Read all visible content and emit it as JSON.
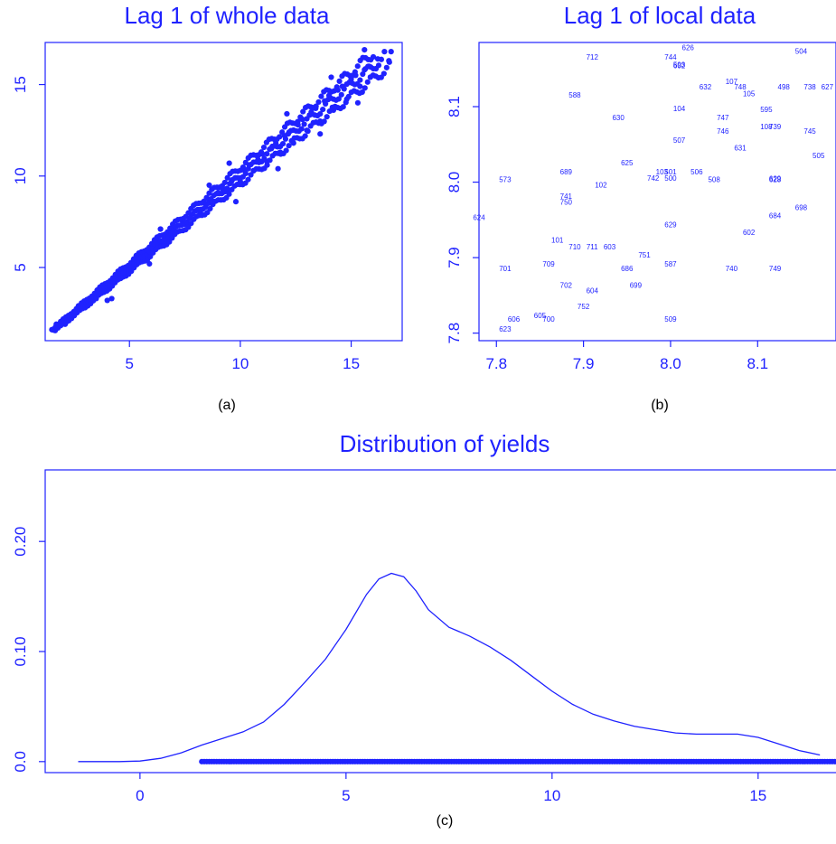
{
  "colors": {
    "series": "#1f22ff",
    "caption": "#000000"
  },
  "chart_data": [
    {
      "type": "scatter",
      "title": "Lag 1 of whole data",
      "caption": "(a)",
      "xlabel": "",
      "ylabel": "",
      "xlim": [
        1.2,
        17.3
      ],
      "ylim": [
        1.0,
        17.3
      ],
      "xticks": [
        5,
        10,
        15
      ],
      "yticks": [
        5,
        10,
        15
      ],
      "xtick_labels": [
        "5",
        "10",
        "15"
      ],
      "ytick_labels": [
        "5",
        "10",
        "15"
      ],
      "grid": false,
      "points": [
        [
          1.5,
          1.6
        ],
        [
          1.7,
          1.9
        ],
        [
          1.9,
          2.0
        ],
        [
          2.1,
          1.9
        ],
        [
          2.2,
          2.3
        ],
        [
          2.5,
          2.4
        ],
        [
          2.7,
          2.9
        ],
        [
          3.0,
          2.8
        ],
        [
          3.2,
          3.3
        ],
        [
          3.5,
          3.3
        ],
        [
          3.7,
          3.8
        ],
        [
          3.9,
          3.9
        ],
        [
          4.0,
          3.2
        ],
        [
          4.2,
          4.3
        ],
        [
          4.4,
          4.5
        ],
        [
          4.6,
          4.4
        ],
        [
          4.8,
          4.9
        ],
        [
          5.0,
          5.1
        ],
        [
          5.2,
          5.0
        ],
        [
          5.4,
          5.5
        ],
        [
          5.6,
          5.7
        ],
        [
          5.8,
          5.6
        ],
        [
          6.0,
          6.1
        ],
        [
          6.2,
          6.3
        ],
        [
          6.4,
          6.3
        ],
        [
          6.6,
          6.7
        ],
        [
          6.8,
          6.9
        ],
        [
          7.0,
          6.8
        ],
        [
          7.2,
          7.3
        ],
        [
          7.4,
          7.5
        ],
        [
          7.6,
          7.4
        ],
        [
          7.8,
          7.9
        ],
        [
          8.0,
          8.1
        ],
        [
          8.2,
          8.0
        ],
        [
          8.4,
          8.5
        ],
        [
          8.6,
          8.7
        ],
        [
          8.8,
          8.6
        ],
        [
          9.0,
          9.1
        ],
        [
          9.2,
          9.3
        ],
        [
          9.4,
          9.2
        ],
        [
          9.6,
          9.7
        ],
        [
          9.8,
          9.9
        ],
        [
          10.0,
          9.7
        ],
        [
          10.2,
          10.3
        ],
        [
          10.4,
          10.6
        ],
        [
          10.6,
          10.3
        ],
        [
          10.8,
          10.9
        ],
        [
          11.0,
          11.2
        ],
        [
          11.2,
          10.8
        ],
        [
          11.4,
          11.5
        ],
        [
          11.6,
          11.8
        ],
        [
          11.8,
          11.3
        ],
        [
          12.0,
          12.2
        ],
        [
          12.2,
          12.4
        ],
        [
          12.4,
          11.8
        ],
        [
          12.6,
          12.8
        ],
        [
          12.8,
          13.1
        ],
        [
          13.0,
          12.5
        ],
        [
          13.2,
          13.5
        ],
        [
          13.4,
          13.7
        ],
        [
          13.6,
          13.0
        ],
        [
          13.8,
          14.1
        ],
        [
          14.0,
          14.4
        ],
        [
          14.2,
          13.6
        ],
        [
          14.4,
          14.7
        ],
        [
          14.6,
          14.9
        ],
        [
          14.8,
          14.2
        ],
        [
          15.0,
          15.3
        ],
        [
          15.2,
          15.5
        ],
        [
          15.4,
          14.9
        ],
        [
          15.6,
          15.8
        ],
        [
          15.8,
          16.0
        ],
        [
          16.0,
          15.5
        ],
        [
          16.2,
          16.4
        ],
        [
          16.5,
          16.8
        ],
        [
          16.7,
          16.3
        ],
        [
          16.8,
          16.8
        ],
        [
          15.3,
          14.0
        ],
        [
          13.6,
          12.3
        ],
        [
          11.7,
          10.4
        ],
        [
          9.8,
          8.6
        ],
        [
          9.5,
          10.7
        ],
        [
          12.1,
          13.4
        ],
        [
          14.1,
          15.4
        ],
        [
          15.6,
          16.9
        ],
        [
          8.6,
          9.5
        ],
        [
          6.4,
          7.1
        ],
        [
          5.9,
          5.2
        ],
        [
          4.2,
          3.3
        ]
      ]
    },
    {
      "type": "scatter",
      "title": "Lag 1 of local data",
      "caption": "(b)",
      "xlabel": "",
      "ylabel": "",
      "xlim": [
        7.78,
        8.19
      ],
      "ylim": [
        7.79,
        8.185
      ],
      "xticks": [
        7.8,
        7.9,
        8.0,
        8.1
      ],
      "yticks": [
        7.8,
        7.9,
        8.0,
        8.1
      ],
      "xtick_labels": [
        "7.8",
        "7.9",
        "8.0",
        "8.1"
      ],
      "ytick_labels": [
        "7.8",
        "7.9",
        "8.0",
        "8.1"
      ],
      "grid": false,
      "labeled_points": [
        [
          "626",
          8.02,
          8.175
        ],
        [
          "504",
          8.15,
          8.17
        ],
        [
          "712",
          7.91,
          8.162
        ],
        [
          "744",
          8.0,
          8.162
        ],
        [
          "593",
          8.01,
          8.152
        ],
        [
          "602",
          8.01,
          8.151
        ],
        [
          "107",
          8.07,
          8.13
        ],
        [
          "632",
          8.04,
          8.123
        ],
        [
          "748",
          8.08,
          8.123
        ],
        [
          "498",
          8.13,
          8.123
        ],
        [
          "738",
          8.16,
          8.123
        ],
        [
          "627",
          8.18,
          8.123
        ],
        [
          "105",
          8.09,
          8.114
        ],
        [
          "588",
          7.89,
          8.112
        ],
        [
          "595",
          8.11,
          8.093
        ],
        [
          "104",
          8.01,
          8.094
        ],
        [
          "630",
          7.94,
          8.082
        ],
        [
          "747",
          8.06,
          8.082
        ],
        [
          "108",
          8.11,
          8.07
        ],
        [
          "739",
          8.12,
          8.07
        ],
        [
          "746",
          8.06,
          8.064
        ],
        [
          "745",
          8.16,
          8.064
        ],
        [
          "507",
          8.01,
          8.052
        ],
        [
          "631",
          8.08,
          8.042
        ],
        [
          "505",
          8.17,
          8.032
        ],
        [
          "625",
          7.95,
          8.022
        ],
        [
          "689",
          7.88,
          8.01
        ],
        [
          "103",
          7.99,
          8.01
        ],
        [
          "501",
          8.0,
          8.01
        ],
        [
          "506",
          8.03,
          8.01
        ],
        [
          "742",
          7.98,
          8.002
        ],
        [
          "500",
          8.0,
          8.002
        ],
        [
          "508",
          8.05,
          8.0
        ],
        [
          "628",
          8.12,
          8.0
        ],
        [
          "629",
          8.12,
          8.001
        ],
        [
          "573",
          7.81,
          8.0
        ],
        [
          "102",
          7.92,
          7.993
        ],
        [
          "741",
          7.88,
          7.978
        ],
        [
          "750",
          7.88,
          7.97
        ],
        [
          "698",
          8.15,
          7.963
        ],
        [
          "684",
          8.12,
          7.952
        ],
        [
          "624",
          7.78,
          7.95
        ],
        [
          "629",
          8.0,
          7.94
        ],
        [
          "602",
          8.09,
          7.93
        ],
        [
          "101",
          7.87,
          7.92
        ],
        [
          "710",
          7.89,
          7.911
        ],
        [
          "711",
          7.91,
          7.911
        ],
        [
          "603",
          7.93,
          7.911
        ],
        [
          "751",
          7.97,
          7.9
        ],
        [
          "709",
          7.86,
          7.888
        ],
        [
          "587",
          8.0,
          7.888
        ],
        [
          "701",
          7.81,
          7.882
        ],
        [
          "686",
          7.95,
          7.882
        ],
        [
          "740",
          8.07,
          7.882
        ],
        [
          "749",
          8.12,
          7.882
        ],
        [
          "702",
          7.88,
          7.86
        ],
        [
          "699",
          7.96,
          7.86
        ],
        [
          "604",
          7.91,
          7.853
        ],
        [
          "752",
          7.9,
          7.832
        ],
        [
          "605",
          7.85,
          7.82
        ],
        [
          "606",
          7.82,
          7.815
        ],
        [
          "700",
          7.86,
          7.815
        ],
        [
          "509",
          8.0,
          7.815
        ],
        [
          "623",
          7.81,
          7.802
        ]
      ]
    },
    {
      "type": "line",
      "title": "Distribution of yields",
      "caption": "(c)",
      "xlabel": "",
      "ylabel": "",
      "xlim": [
        -2.3,
        17.0
      ],
      "ylim": [
        -0.01,
        0.265
      ],
      "xticks": [
        0,
        5,
        10,
        15
      ],
      "yticks": [
        0.0,
        0.1,
        0.2
      ],
      "xtick_labels": [
        "0",
        "5",
        "10",
        "15"
      ],
      "ytick_labels": [
        "0.0",
        "0.10",
        "0.20"
      ],
      "grid": false,
      "density": {
        "x": [
          -1.5,
          -1.0,
          -0.5,
          0.0,
          0.5,
          1.0,
          1.5,
          2.0,
          2.5,
          3.0,
          3.5,
          4.0,
          4.5,
          5.0,
          5.5,
          5.8,
          6.1,
          6.4,
          6.7,
          7.0,
          7.5,
          8.0,
          8.5,
          9.0,
          9.5,
          10.0,
          10.5,
          11.0,
          11.5,
          12.0,
          12.5,
          13.0,
          13.5,
          14.0,
          14.5,
          15.0,
          15.5,
          16.0,
          16.5
        ],
        "y": [
          0.0,
          0.0,
          0.0,
          0.0005,
          0.003,
          0.008,
          0.015,
          0.021,
          0.027,
          0.036,
          0.052,
          0.072,
          0.093,
          0.12,
          0.152,
          0.166,
          0.171,
          0.168,
          0.155,
          0.138,
          0.122,
          0.114,
          0.104,
          0.092,
          0.078,
          0.064,
          0.052,
          0.043,
          0.037,
          0.032,
          0.029,
          0.026,
          0.025,
          0.025,
          0.025,
          0.022,
          0.016,
          0.01,
          0.006
        ]
      },
      "rug": {
        "y": 0.0,
        "x_from": 1.5,
        "x_to": 16.9
      }
    }
  ]
}
